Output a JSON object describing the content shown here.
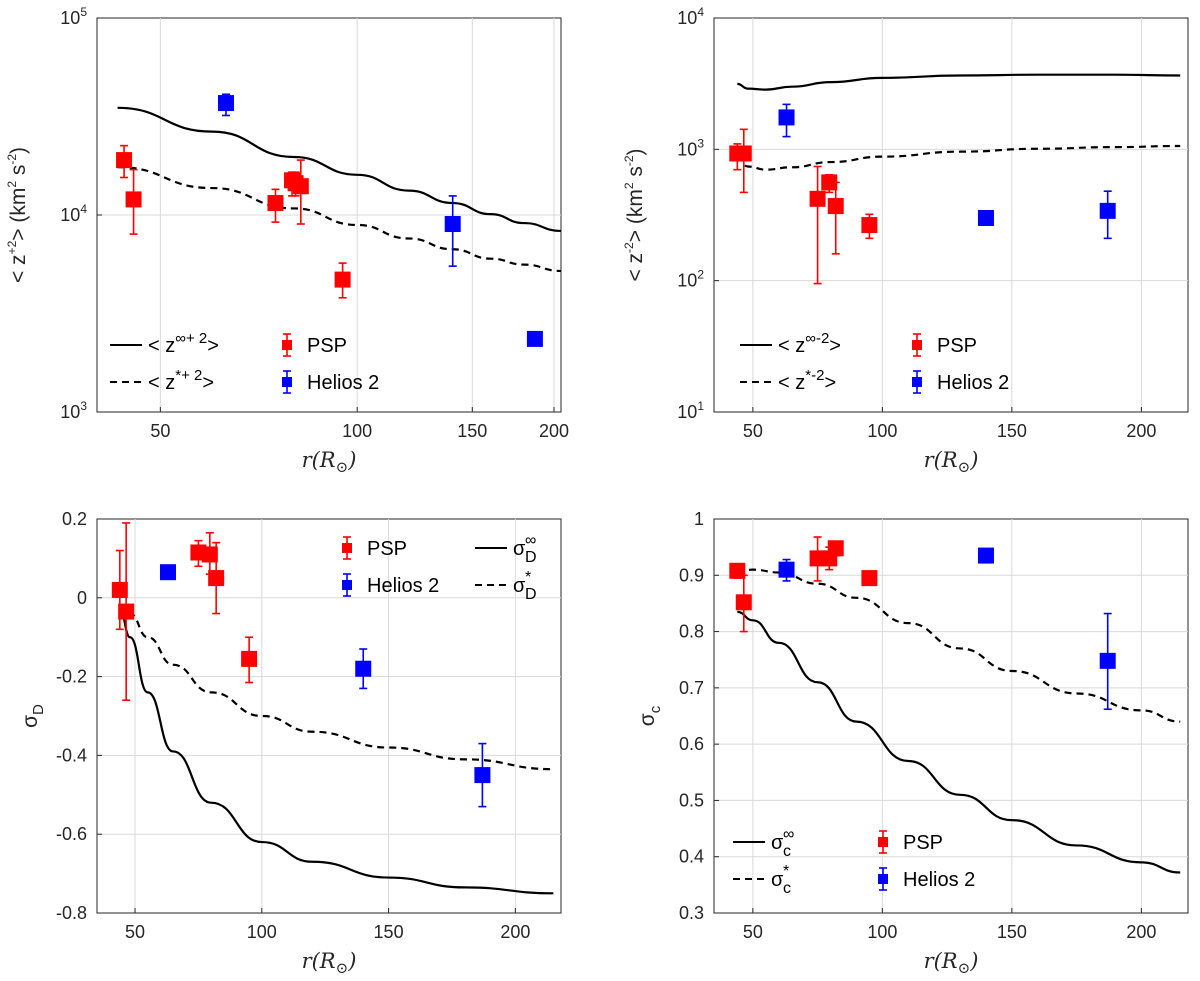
{
  "chart_data": [
    {
      "type": "scatter",
      "ylabel_text": "< z^{+2} > (km^2 s^{-2})",
      "xlabel_text": "r(R_⊙)",
      "ylabel_parts": {
        "a": "< z",
        "b": "+2",
        "c": "> (km",
        "d": "2",
        "e": " s",
        "f": "-2",
        "g": ")"
      },
      "xlabel_parts": {
        "main": "r(R",
        "sub": "⊙",
        "end": ")"
      },
      "yscale": "log",
      "xscale": "log",
      "xlim": [
        40,
        205
      ],
      "ylim": [
        1000,
        100000
      ],
      "xticks": [
        50,
        100,
        150,
        200
      ],
      "yticks": [
        {
          "v": 1000,
          "base": "10",
          "exp": "3"
        },
        {
          "v": 10000,
          "base": "10",
          "exp": "4"
        },
        {
          "v": 100000,
          "base": "10",
          "exp": "5"
        }
      ],
      "grid": true,
      "legend_position": "bottom-left",
      "lines": [
        {
          "legend": {
            "pre": "< z",
            "sup": "∞+ 2",
            "post": ">"
          },
          "style": "solid",
          "x": [
            43,
            60,
            80,
            100,
            120,
            140,
            160,
            180,
            205
          ],
          "y": [
            35000,
            26500,
            19700,
            16000,
            13300,
            11500,
            10100,
            9100,
            8300
          ]
        },
        {
          "legend": {
            "pre": "< z",
            "sup": "*+ 2",
            "post": ">"
          },
          "style": "dashed",
          "x": [
            43,
            60,
            80,
            100,
            120,
            140,
            160,
            180,
            205
          ],
          "y": [
            17500,
            13700,
            10800,
            8900,
            7600,
            6700,
            6000,
            5600,
            5200
          ]
        }
      ],
      "series": [
        {
          "name": "PSP",
          "color": "#ff0000",
          "points": [
            {
              "x": 44,
              "y": 19000,
              "lo": 15500,
              "hi": 22500
            },
            {
              "x": 45.5,
              "y": 12000,
              "lo": 8000,
              "hi": 17000
            },
            {
              "x": 75,
              "y": 11500,
              "lo": 9200,
              "hi": 13500
            },
            {
              "x": 79.5,
              "y": 15000,
              "lo": 12500,
              "hi": 16500
            },
            {
              "x": 80.5,
              "y": 14500,
              "lo": 12500,
              "hi": 16500
            },
            {
              "x": 82,
              "y": 14000,
              "lo": 9000,
              "hi": 19000
            },
            {
              "x": 95,
              "y": 4700,
              "lo": 3800,
              "hi": 5700
            }
          ]
        },
        {
          "name": "Helios 2",
          "color": "#0000ff",
          "points": [
            {
              "x": 63,
              "y": 37000,
              "lo": 32000,
              "hi": 41000
            },
            {
              "x": 140,
              "y": 9000,
              "lo": 5500,
              "hi": 12500
            },
            {
              "x": 187,
              "y": 2350,
              "lo": null,
              "hi": null
            }
          ]
        }
      ]
    },
    {
      "type": "scatter",
      "ylabel_parts": {
        "a": "< z",
        "b": "-2",
        "c": "> (km",
        "d": "2",
        "e": " s",
        "f": "-2",
        "g": ")"
      },
      "xlabel_parts": {
        "main": "r(R",
        "sub": "⊙",
        "end": ")"
      },
      "yscale": "log",
      "xscale": "linear",
      "xlim": [
        35,
        218
      ],
      "ylim": [
        10,
        10000
      ],
      "xticks": [
        50,
        100,
        150,
        200
      ],
      "yticks": [
        {
          "v": 10,
          "base": "10",
          "exp": "1"
        },
        {
          "v": 100,
          "base": "10",
          "exp": "2"
        },
        {
          "v": 1000,
          "base": "10",
          "exp": "3"
        },
        {
          "v": 10000,
          "base": "10",
          "exp": "4"
        }
      ],
      "grid": true,
      "legend_position": "bottom-left",
      "lines": [
        {
          "legend": {
            "pre": "< z",
            "sup": "∞-2",
            "post": ">"
          },
          "style": "solid",
          "x": [
            44,
            48,
            55,
            65,
            80,
            100,
            130,
            160,
            190,
            215
          ],
          "y": [
            3150,
            2900,
            2850,
            3000,
            3250,
            3500,
            3650,
            3700,
            3700,
            3650
          ]
        },
        {
          "legend": {
            "pre": "< z",
            "sup": "*-2",
            "post": ">"
          },
          "style": "dashed",
          "x": [
            44,
            48,
            55,
            65,
            80,
            100,
            130,
            160,
            190,
            215
          ],
          "y": [
            880,
            740,
            700,
            730,
            800,
            880,
            960,
            1010,
            1040,
            1060
          ]
        }
      ],
      "series": [
        {
          "name": "PSP",
          "color": "#ff0000",
          "points": [
            {
              "x": 44,
              "y": 930,
              "lo": 700,
              "hi": 1100
            },
            {
              "x": 46.5,
              "y": 930,
              "lo": 470,
              "hi": 1420
            },
            {
              "x": 75,
              "y": 420,
              "lo": 95,
              "hi": 740
            },
            {
              "x": 79.5,
              "y": 560,
              "lo": 470,
              "hi": 640
            },
            {
              "x": 82,
              "y": 370,
              "lo": 160,
              "hi": 560
            },
            {
              "x": 95,
              "y": 265,
              "lo": 210,
              "hi": 320
            }
          ]
        },
        {
          "name": "Helios 2",
          "color": "#0000ff",
          "points": [
            {
              "x": 63,
              "y": 1750,
              "lo": 1250,
              "hi": 2200
            },
            {
              "x": 140,
              "y": 300,
              "lo": null,
              "hi": null
            },
            {
              "x": 187,
              "y": 340,
              "lo": 210,
              "hi": 480
            }
          ]
        }
      ]
    },
    {
      "type": "scatter",
      "ylabel_parts": {
        "a": "σ",
        "b": "D"
      },
      "xlabel_parts": {
        "main": "r(R",
        "sub": "⊙",
        "end": ")"
      },
      "yscale": "linear",
      "xscale": "linear",
      "xlim": [
        35,
        218
      ],
      "ylim": [
        -0.8,
        0.2
      ],
      "xticks": [
        50,
        100,
        150,
        200
      ],
      "yticks": [
        {
          "v": -0.8,
          "label": "-0.8"
        },
        {
          "v": -0.6,
          "label": "-0.6"
        },
        {
          "v": -0.4,
          "label": "-0.4"
        },
        {
          "v": -0.2,
          "label": "-0.2"
        },
        {
          "v": 0,
          "label": "0"
        },
        {
          "v": 0.2,
          "label": "0.2"
        }
      ],
      "grid": true,
      "legend_position": "top-right",
      "lines": [
        {
          "legend": {
            "pre": "σ",
            "sup": "∞",
            "sub": "D"
          },
          "style": "solid",
          "x": [
            44,
            48,
            55,
            65,
            80,
            100,
            120,
            150,
            180,
            215
          ],
          "y": [
            -0.03,
            -0.1,
            -0.24,
            -0.39,
            -0.52,
            -0.62,
            -0.67,
            -0.71,
            -0.735,
            -0.75
          ]
        },
        {
          "legend": {
            "pre": "σ",
            "sup": "*",
            "sub": "D"
          },
          "style": "dashed",
          "x": [
            44,
            48,
            55,
            65,
            80,
            100,
            120,
            150,
            180,
            215
          ],
          "y": [
            -0.02,
            -0.04,
            -0.1,
            -0.17,
            -0.24,
            -0.3,
            -0.34,
            -0.38,
            -0.41,
            -0.435
          ]
        }
      ],
      "series": [
        {
          "name": "PSP",
          "color": "#ff0000",
          "points": [
            {
              "x": 44,
              "y": 0.02,
              "lo": -0.08,
              "hi": 0.12
            },
            {
              "x": 46.5,
              "y": -0.035,
              "lo": -0.26,
              "hi": 0.19
            },
            {
              "x": 75,
              "y": 0.115,
              "lo": 0.08,
              "hi": 0.145
            },
            {
              "x": 79.5,
              "y": 0.11,
              "lo": 0.06,
              "hi": 0.165
            },
            {
              "x": 82,
              "y": 0.05,
              "lo": -0.04,
              "hi": 0.14
            },
            {
              "x": 95,
              "y": -0.155,
              "lo": -0.215,
              "hi": -0.1
            }
          ]
        },
        {
          "name": "Helios 2",
          "color": "#0000ff",
          "points": [
            {
              "x": 63,
              "y": 0.065,
              "lo": null,
              "hi": null
            },
            {
              "x": 140,
              "y": -0.18,
              "lo": -0.23,
              "hi": -0.13
            },
            {
              "x": 187,
              "y": -0.45,
              "lo": -0.53,
              "hi": -0.37
            }
          ]
        }
      ]
    },
    {
      "type": "scatter",
      "ylabel_parts": {
        "a": "σ",
        "b": "c"
      },
      "xlabel_parts": {
        "main": "r(R",
        "sub": "⊙",
        "end": ")"
      },
      "yscale": "linear",
      "xscale": "linear",
      "xlim": [
        35,
        218
      ],
      "ylim": [
        0.3,
        1.0
      ],
      "xticks": [
        50,
        100,
        150,
        200
      ],
      "yticks": [
        {
          "v": 0.3,
          "label": "0.3"
        },
        {
          "v": 0.4,
          "label": "0.4"
        },
        {
          "v": 0.5,
          "label": "0.5"
        },
        {
          "v": 0.6,
          "label": "0.6"
        },
        {
          "v": 0.7,
          "label": "0.7"
        },
        {
          "v": 0.8,
          "label": "0.8"
        },
        {
          "v": 0.9,
          "label": "0.9"
        },
        {
          "v": 1.0,
          "label": "1"
        }
      ],
      "grid": true,
      "legend_position": "bottom-left",
      "lines": [
        {
          "legend": {
            "pre": "σ",
            "sup": "∞",
            "sub": "c"
          },
          "style": "solid",
          "x": [
            44,
            50,
            60,
            75,
            90,
            110,
            130,
            150,
            175,
            200,
            215
          ],
          "y": [
            0.835,
            0.82,
            0.78,
            0.71,
            0.64,
            0.57,
            0.51,
            0.465,
            0.42,
            0.39,
            0.372
          ]
        },
        {
          "legend": {
            "pre": "σ",
            "sup": "*",
            "sub": "c"
          },
          "style": "dashed",
          "x": [
            44,
            50,
            60,
            75,
            90,
            110,
            130,
            150,
            175,
            200,
            215
          ],
          "y": [
            0.905,
            0.91,
            0.905,
            0.885,
            0.86,
            0.815,
            0.77,
            0.73,
            0.69,
            0.66,
            0.64
          ]
        }
      ],
      "series": [
        {
          "name": "PSP",
          "color": "#ff0000",
          "points": [
            {
              "x": 44,
              "y": 0.908,
              "lo": 0.895,
              "hi": 0.92
            },
            {
              "x": 46.5,
              "y": 0.852,
              "lo": 0.8,
              "hi": 0.9
            },
            {
              "x": 75,
              "y": 0.93,
              "lo": 0.89,
              "hi": 0.968
            },
            {
              "x": 79.5,
              "y": 0.93,
              "lo": 0.91,
              "hi": 0.95
            },
            {
              "x": 82,
              "y": 0.948,
              "lo": 0.935,
              "hi": 0.96
            },
            {
              "x": 95,
              "y": 0.895,
              "lo": null,
              "hi": null
            }
          ]
        },
        {
          "name": "Helios 2",
          "color": "#0000ff",
          "points": [
            {
              "x": 63,
              "y": 0.91,
              "lo": 0.89,
              "hi": 0.928
            },
            {
              "x": 140,
              "y": 0.935,
              "lo": 0.925,
              "hi": 0.945
            },
            {
              "x": 187,
              "y": 0.748,
              "lo": 0.662,
              "hi": 0.832
            }
          ]
        }
      ]
    }
  ]
}
